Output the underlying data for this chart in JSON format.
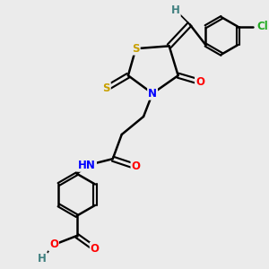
{
  "background_color": "#ebebeb",
  "atom_colors": {
    "S": "#c8a000",
    "N": "#0000ff",
    "O": "#ff0000",
    "Cl": "#22aa22",
    "C": "#000000",
    "H": "#408080"
  },
  "bond_color": "#000000",
  "bond_width": 1.8,
  "figsize": [
    3.0,
    3.0
  ],
  "dpi": 100
}
